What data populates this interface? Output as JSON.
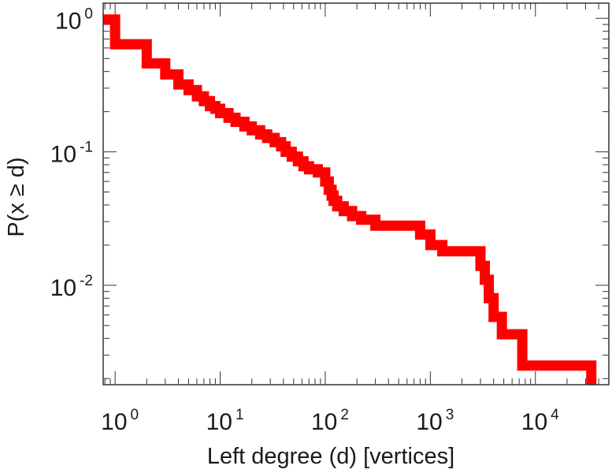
{
  "chart_data": {
    "type": "line",
    "step": true,
    "xscale": "log",
    "yscale": "log",
    "xlim": [
      0.77,
      50000
    ],
    "ylim": [
      0.0018,
      1.3
    ],
    "xlabel": "Left degree (d) [vertices]",
    "ylabel": "P(x ≥ d)",
    "x_ticks": [
      {
        "value": 1,
        "base": "10",
        "exp": "0"
      },
      {
        "value": 10,
        "base": "10",
        "exp": "1"
      },
      {
        "value": 100,
        "base": "10",
        "exp": "2"
      },
      {
        "value": 1000,
        "base": "10",
        "exp": "3"
      },
      {
        "value": 10000,
        "base": "10",
        "exp": "4"
      }
    ],
    "y_ticks": [
      {
        "value": 1,
        "base": "10",
        "exp": "0"
      },
      {
        "value": 0.1,
        "base": "10",
        "exp": "-1"
      },
      {
        "value": 0.01,
        "base": "10",
        "exp": "-2"
      }
    ],
    "grid": false,
    "series": [
      {
        "color": "#ff0000",
        "x": [
          0.77,
          1,
          1,
          2,
          2,
          3,
          3,
          4,
          4,
          5,
          5,
          6,
          6,
          7,
          7,
          8,
          8,
          9,
          9,
          10,
          10,
          12,
          12,
          14,
          14,
          17,
          17,
          20,
          20,
          24,
          24,
          28,
          28,
          33,
          33,
          38,
          38,
          42,
          42,
          48,
          48,
          55,
          55,
          62,
          62,
          70,
          70,
          85,
          85,
          100,
          100,
          108,
          108,
          115,
          115,
          120,
          120,
          130,
          130,
          150,
          150,
          180,
          180,
          220,
          220,
          300,
          300,
          400,
          400,
          800,
          800,
          1000,
          1000,
          1300,
          1300,
          3000,
          3000,
          3300,
          3300,
          3600,
          3600,
          4000,
          4000,
          4800,
          4800,
          7500,
          7500,
          34000,
          34000
        ],
        "y": [
          0.98,
          0.98,
          0.64,
          0.64,
          0.46,
          0.46,
          0.38,
          0.38,
          0.32,
          0.32,
          0.29,
          0.29,
          0.26,
          0.26,
          0.24,
          0.24,
          0.22,
          0.22,
          0.21,
          0.21,
          0.195,
          0.195,
          0.18,
          0.18,
          0.168,
          0.168,
          0.155,
          0.155,
          0.145,
          0.145,
          0.135,
          0.135,
          0.127,
          0.127,
          0.118,
          0.118,
          0.11,
          0.11,
          0.1,
          0.1,
          0.092,
          0.092,
          0.085,
          0.085,
          0.078,
          0.078,
          0.074,
          0.074,
          0.07,
          0.07,
          0.06,
          0.06,
          0.052,
          0.052,
          0.047,
          0.047,
          0.043,
          0.043,
          0.039,
          0.039,
          0.036,
          0.036,
          0.033,
          0.033,
          0.031,
          0.031,
          0.028,
          0.028,
          0.028,
          0.028,
          0.024,
          0.024,
          0.02,
          0.02,
          0.018,
          0.018,
          0.014,
          0.014,
          0.011,
          0.011,
          0.008,
          0.008,
          0.0058,
          0.0058,
          0.0043,
          0.0043,
          0.0025,
          0.0025,
          0.0018
        ]
      }
    ]
  }
}
